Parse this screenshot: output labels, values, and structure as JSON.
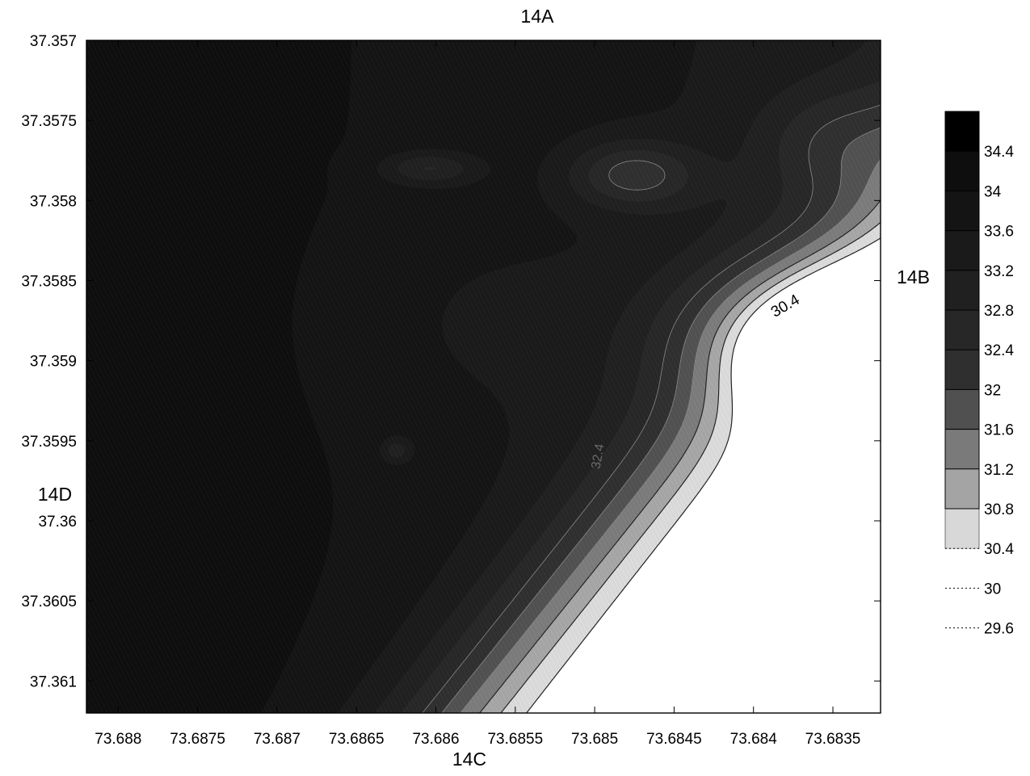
{
  "chart_data": {
    "type": "heatmap",
    "subtype": "filled-contour",
    "title": "",
    "edge_labels": {
      "top": "14A",
      "right": "14B",
      "bottom": "14C",
      "left": "14D"
    },
    "x_axis": {
      "ticks": [
        "73.688",
        "73.6875",
        "73.687",
        "73.6865",
        "73.686",
        "73.6855",
        "73.685",
        "73.6845",
        "73.684",
        "73.6835"
      ],
      "range": [
        73.6882,
        73.6832
      ],
      "direction": "decreasing-left-to-right"
    },
    "y_axis": {
      "ticks": [
        "37.357",
        "37.3575",
        "37.358",
        "37.3585",
        "37.359",
        "37.3595",
        "37.36",
        "37.3605",
        "37.361"
      ],
      "range": [
        37.357,
        37.3612
      ],
      "direction": "increasing-top-to-bottom"
    },
    "colorbar": {
      "levels": [
        {
          "label": "34.4",
          "value": 34.4,
          "color": "#0e0e0e"
        },
        {
          "label": "34",
          "value": 34.0,
          "color": "#141414"
        },
        {
          "label": "33.6",
          "value": 33.6,
          "color": "#1a1a1a"
        },
        {
          "label": "33.2",
          "value": 33.2,
          "color": "#202020"
        },
        {
          "label": "32.8",
          "value": 32.8,
          "color": "#272727"
        },
        {
          "label": "32.4",
          "value": 32.4,
          "color": "#2f2f2f"
        },
        {
          "label": "32",
          "value": 32.0,
          "color": "#505050"
        },
        {
          "label": "31.6",
          "value": 31.6,
          "color": "#7a7a7a"
        },
        {
          "label": "31.2",
          "value": 31.2,
          "color": "#a4a4a4"
        },
        {
          "label": "30.8",
          "value": 30.8,
          "color": "#d8d8d8"
        },
        {
          "label": "30.4",
          "value": 30.4,
          "color": "#ffffff"
        },
        {
          "label": "30",
          "value": 30.0,
          "color": "#ffffff"
        },
        {
          "label": "29.6",
          "value": 29.6,
          "color": "#ffffff"
        }
      ],
      "max_color": "#000000"
    },
    "contour_labels": [
      {
        "text": "30.4",
        "value": 30.4
      },
      {
        "text": "32.4",
        "value": 32.4
      }
    ],
    "grid": false,
    "legend_position": "right"
  }
}
